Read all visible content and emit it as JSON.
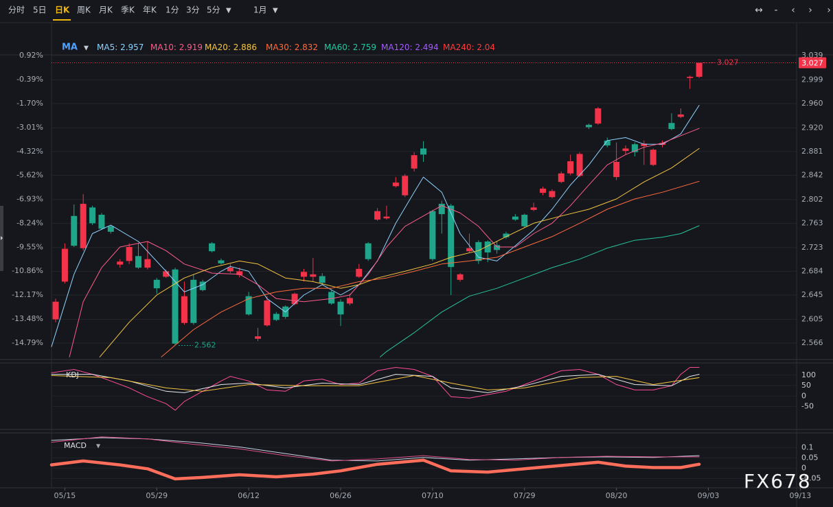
{
  "toolbar": {
    "periods": [
      "分时",
      "5日",
      "日K",
      "周K",
      "月K",
      "季K",
      "年K",
      "1分",
      "3分",
      "5分"
    ],
    "active_period": "日K",
    "period_menu": "▼",
    "range": "1月",
    "range_menu": "▼",
    "tools": [
      "↔",
      "-",
      "‹",
      "›",
      "›"
    ]
  },
  "watermark": "FX678",
  "chart_data": {
    "type": "candlestick",
    "indicator": "MA",
    "indicator_menu": "▼",
    "xlim": [
      -0.45,
      80.6
    ],
    "xticks": [
      {
        "value": 1,
        "label": "05/15"
      },
      {
        "value": 11,
        "label": "05/29"
      },
      {
        "value": 21,
        "label": "06/12"
      },
      {
        "value": 31,
        "label": "06/26"
      },
      {
        "value": 41,
        "label": "07/10"
      },
      {
        "value": 51,
        "label": "07/29"
      },
      {
        "value": 61,
        "label": "08/20"
      },
      {
        "value": 71,
        "label": "09/03"
      },
      {
        "value": 81,
        "label": "09/13"
      }
    ],
    "ylim": [
      2.54,
      3.04
    ],
    "yticks": [
      3.039,
      2.999,
      {
        "value": 2.96,
        "label": "2.960"
      },
      {
        "value": 2.92,
        "label": "2.920"
      },
      2.881,
      2.842,
      2.802,
      2.763,
      2.723,
      2.684,
      2.645,
      2.605,
      2.566
    ],
    "y2lim": [
      -15.65,
      0.96
    ],
    "y2ticks": [
      {
        "value": 0.92,
        "label": "0.92%"
      },
      {
        "value": -0.39,
        "label": "-0.39%"
      },
      {
        "value": -1.7,
        "label": "-1.70%"
      },
      {
        "value": -3.01,
        "label": "-3.01%"
      },
      {
        "value": -4.32,
        "label": "-4.32%"
      },
      {
        "value": -5.62,
        "label": "-5.62%"
      },
      {
        "value": -6.93,
        "label": "-6.93%"
      },
      {
        "value": -8.24,
        "label": "-8.24%"
      },
      {
        "value": -9.55,
        "label": "-9.55%"
      },
      {
        "value": -10.86,
        "label": "-10.86%"
      },
      {
        "value": -12.17,
        "label": "-12.17%"
      },
      {
        "value": -13.48,
        "label": "-13.48%"
      },
      {
        "value": -14.79,
        "label": "-14.79%"
      }
    ],
    "grid": true,
    "up_color": "#f2334a",
    "down_color": "#1fa58a",
    "open": [
      2.605,
      2.667,
      2.775,
      2.722,
      2.789,
      2.777,
      2.758,
      2.695,
      2.701,
      2.709,
      2.69,
      2.67,
      2.675,
      2.687,
      2.599,
      2.67,
      2.667,
      2.73,
      2.702,
      2.684,
      2.678,
      2.643,
      2.573,
      2.595,
      2.614,
      2.626,
      2.63,
      2.675,
      2.675,
      2.676,
      2.65,
      2.634,
      2.631,
      2.675,
      2.73,
      2.769,
      2.771,
      2.824,
      2.809,
      2.853,
      2.886,
      2.783,
      2.795,
      2.792,
      2.67,
      2.717,
      2.732,
      2.733,
      2.727,
      2.746,
      2.774,
      2.777,
      2.785,
      2.813,
      2.806,
      2.831,
      2.845,
      2.841,
      2.925,
      2.927,
      2.899,
      2.839,
      2.882,
      2.893,
      2.89,
      2.859,
      2.892,
      2.928,
      2.938,
      3.002,
      3.004
    ],
    "high": [
      2.639,
      2.73,
      2.794,
      2.811,
      2.792,
      2.78,
      2.76,
      2.704,
      2.73,
      2.73,
      2.733,
      2.673,
      2.687,
      2.69,
      2.667,
      2.679,
      2.67,
      2.732,
      2.705,
      2.696,
      2.69,
      2.65,
      2.591,
      2.643,
      2.617,
      2.628,
      2.649,
      2.688,
      2.706,
      2.681,
      2.653,
      2.638,
      2.647,
      2.696,
      2.732,
      2.788,
      2.792,
      2.839,
      2.844,
      2.88,
      2.898,
      2.785,
      2.8,
      2.795,
      2.681,
      2.746,
      2.735,
      2.735,
      2.733,
      2.749,
      2.778,
      2.779,
      2.797,
      2.823,
      2.819,
      2.848,
      2.876,
      2.88,
      2.927,
      2.954,
      2.904,
      2.896,
      2.891,
      2.896,
      2.899,
      2.886,
      2.899,
      2.944,
      2.952,
      3.006,
      3.027
    ],
    "low": [
      2.6,
      2.664,
      2.724,
      2.718,
      2.76,
      2.752,
      2.746,
      2.69,
      2.696,
      2.688,
      2.687,
      2.647,
      2.673,
      2.562,
      2.596,
      2.596,
      2.651,
      2.715,
      2.695,
      2.681,
      2.674,
      2.611,
      2.569,
      2.593,
      2.602,
      2.606,
      2.628,
      2.667,
      2.667,
      2.662,
      2.629,
      2.594,
      2.628,
      2.673,
      2.701,
      2.767,
      2.769,
      2.822,
      2.806,
      2.848,
      2.864,
      2.701,
      2.746,
      2.645,
      2.667,
      2.715,
      2.696,
      2.699,
      2.713,
      2.737,
      2.767,
      2.756,
      2.783,
      2.809,
      2.804,
      2.829,
      2.842,
      2.839,
      2.918,
      2.925,
      2.888,
      2.834,
      2.876,
      2.873,
      2.859,
      2.857,
      2.888,
      2.916,
      2.936,
      2.984,
      3.002
    ],
    "close": [
      2.634,
      2.721,
      2.726,
      2.795,
      2.763,
      2.754,
      2.749,
      2.7,
      2.724,
      2.69,
      2.704,
      2.656,
      2.684,
      2.565,
      2.643,
      2.599,
      2.653,
      2.717,
      2.697,
      2.69,
      2.684,
      2.613,
      2.577,
      2.636,
      2.604,
      2.609,
      2.647,
      2.683,
      2.679,
      2.665,
      2.631,
      2.613,
      2.64,
      2.688,
      2.704,
      2.783,
      2.774,
      2.83,
      2.841,
      2.875,
      2.876,
      2.704,
      2.778,
      2.691,
      2.679,
      2.722,
      2.701,
      2.715,
      2.719,
      2.74,
      2.769,
      2.758,
      2.789,
      2.82,
      2.816,
      2.845,
      2.865,
      2.877,
      2.921,
      2.952,
      2.891,
      2.864,
      2.886,
      2.88,
      2.894,
      2.884,
      2.895,
      2.918,
      2.942,
      3.004,
      3.027
    ],
    "last_price": 3.027,
    "high_mark": 3.027,
    "low_mark": 2.562,
    "moving_averages": [
      {
        "name": "MA5",
        "value": 2.957,
        "color": "#8fd3ff",
        "x": [
          -0.45,
          2,
          4,
          6,
          9,
          12,
          14,
          16,
          18,
          19,
          21,
          23,
          25,
          27,
          29,
          31,
          33,
          35,
          37,
          39,
          40,
          42,
          44,
          46,
          48,
          50,
          52,
          54,
          56,
          58,
          60,
          62,
          64,
          66,
          68,
          70
        ],
        "values": [
          2.56,
          2.679,
          2.746,
          2.76,
          2.733,
          2.684,
          2.65,
          2.662,
          2.684,
          2.692,
          2.684,
          2.639,
          2.617,
          2.645,
          2.662,
          2.645,
          2.662,
          2.701,
          2.763,
          2.814,
          2.839,
          2.814,
          2.746,
          2.707,
          2.701,
          2.726,
          2.752,
          2.786,
          2.826,
          2.859,
          2.899,
          2.904,
          2.893,
          2.893,
          2.91,
          2.957
        ]
      },
      {
        "name": "MA10",
        "value": 2.919,
        "color": "#ff5c8a",
        "x": [
          1.5,
          3,
          5,
          7,
          10,
          12,
          14,
          17,
          20,
          22,
          24,
          27,
          30,
          32,
          34,
          36,
          38,
          40,
          42,
          44,
          46,
          48,
          50,
          52,
          54,
          56,
          58,
          60,
          62,
          64,
          66,
          68,
          70
        ],
        "values": [
          2.543,
          2.634,
          2.69,
          2.724,
          2.733,
          2.718,
          2.696,
          2.681,
          2.679,
          2.662,
          2.639,
          2.634,
          2.639,
          2.645,
          2.679,
          2.724,
          2.758,
          2.775,
          2.792,
          2.78,
          2.758,
          2.724,
          2.724,
          2.746,
          2.763,
          2.792,
          2.826,
          2.859,
          2.876,
          2.888,
          2.895,
          2.907,
          2.919
        ]
      },
      {
        "name": "MA20",
        "value": 2.886,
        "color": "#f5c542",
        "x": [
          4.8,
          8,
          11,
          14,
          17,
          20,
          22,
          25,
          28,
          31,
          33,
          35,
          38,
          41,
          43,
          46,
          49,
          52,
          55,
          58,
          61,
          64,
          67,
          70
        ],
        "values": [
          2.543,
          2.6,
          2.645,
          2.673,
          2.69,
          2.701,
          2.696,
          2.673,
          2.667,
          2.656,
          2.662,
          2.673,
          2.684,
          2.696,
          2.707,
          2.718,
          2.741,
          2.763,
          2.775,
          2.786,
          2.803,
          2.831,
          2.854,
          2.886
        ]
      },
      {
        "name": "MA30",
        "value": 2.832,
        "color": "#ff6b3d",
        "x": [
          11.5,
          15,
          18,
          21,
          24,
          27,
          30,
          33,
          36,
          39,
          42,
          45,
          48,
          51,
          54,
          57,
          60,
          63,
          66,
          70
        ],
        "values": [
          2.543,
          2.588,
          2.617,
          2.639,
          2.65,
          2.656,
          2.656,
          2.667,
          2.673,
          2.684,
          2.696,
          2.701,
          2.707,
          2.724,
          2.741,
          2.763,
          2.786,
          2.803,
          2.814,
          2.832
        ]
      },
      {
        "name": "MA60",
        "value": 2.759,
        "color": "#26c6a0",
        "x": [
          35.3,
          36,
          39,
          42,
          45,
          48,
          51,
          54,
          57,
          60,
          63,
          66,
          68,
          70
        ],
        "values": [
          2.543,
          2.552,
          2.583,
          2.617,
          2.643,
          2.656,
          2.673,
          2.69,
          2.704,
          2.722,
          2.735,
          2.74,
          2.746,
          2.759
        ]
      },
      {
        "name": "MA120",
        "value": 2.494,
        "color": "#a45cff"
      },
      {
        "name": "MA240",
        "value": 2.04,
        "color": "#ff3b3b"
      }
    ],
    "kdj": {
      "title": "KDJ",
      "ylim": [
        -140,
        155
      ],
      "yticks": [
        100,
        50,
        0,
        -50
      ],
      "series": [
        {
          "color": "#ff4d9a",
          "x": [
            -0.45,
            2,
            4,
            6,
            8,
            10,
            12,
            13,
            14,
            16,
            18,
            19,
            21,
            23,
            25,
            27,
            29,
            31,
            33,
            35,
            37,
            39,
            41,
            43,
            45,
            47,
            49,
            51,
            53,
            55,
            57,
            59,
            61,
            63,
            65,
            67,
            68,
            69,
            70
          ],
          "values": [
            111,
            127,
            104,
            72,
            39,
            -3,
            -36,
            -68,
            -26,
            23,
            72,
            94,
            72,
            29,
            23,
            72,
            81,
            55,
            62,
            121,
            137,
            127,
            94,
            -3,
            -10,
            7,
            23,
            55,
            88,
            121,
            127,
            104,
            55,
            29,
            29,
            49,
            104,
            137,
            137
          ]
        },
        {
          "color": "#e8eaed",
          "x": [
            -0.45,
            4,
            8,
            12,
            14,
            18,
            21,
            25,
            29,
            33,
            37,
            41,
            43,
            47,
            51,
            55,
            59,
            63,
            67,
            69,
            70
          ],
          "values": [
            104,
            104,
            72,
            23,
            16,
            55,
            62,
            39,
            62,
            55,
            104,
            94,
            39,
            16,
            49,
            94,
            104,
            55,
            49,
            94,
            104
          ]
        },
        {
          "color": "#f5c542",
          "x": [
            -0.45,
            6,
            12,
            16,
            21,
            27,
            33,
            39,
            43,
            47,
            51,
            57,
            61,
            65,
            70
          ],
          "values": [
            98,
            88,
            39,
            23,
            55,
            49,
            49,
            98,
            62,
            29,
            39,
            88,
            94,
            55,
            88
          ]
        }
      ]
    },
    "macd": {
      "title": "MACD",
      "menu": "▼",
      "ylim": [
        -0.092,
        0.168
      ],
      "yticks": [
        0.1,
        0.05,
        0,
        -0.05
      ],
      "series": [
        {
          "color": "#ff6e5a",
          "kind": "histogram",
          "x": [
            -0.45,
            3,
            7,
            10,
            13,
            16,
            20,
            24,
            28,
            31,
            35,
            40,
            43,
            47,
            51,
            55,
            59,
            62,
            65,
            68,
            70
          ],
          "values": [
            0.016,
            0.035,
            0.016,
            -0.003,
            -0.052,
            -0.045,
            -0.032,
            -0.042,
            -0.029,
            -0.013,
            0.019,
            0.039,
            -0.013,
            -0.019,
            -0.003,
            0.013,
            0.029,
            0.01,
            0.003,
            0.003,
            0.019
          ]
        },
        {
          "color": "#c9d4e6",
          "kind": "line",
          "x": [
            -0.45,
            5,
            10,
            15,
            20,
            25,
            30,
            35,
            40,
            45,
            50,
            55,
            60,
            65,
            70
          ],
          "values": [
            0.135,
            0.148,
            0.142,
            0.126,
            0.103,
            0.071,
            0.039,
            0.035,
            0.052,
            0.039,
            0.045,
            0.052,
            0.055,
            0.052,
            0.061
          ]
        },
        {
          "color": "#e0508a",
          "kind": "line",
          "x": [
            -0.45,
            5,
            10,
            15,
            20,
            25,
            30,
            35,
            40,
            45,
            50,
            55,
            60,
            65,
            70
          ],
          "values": [
            0.126,
            0.152,
            0.142,
            0.116,
            0.094,
            0.061,
            0.035,
            0.045,
            0.061,
            0.042,
            0.039,
            0.052,
            0.058,
            0.055,
            0.055
          ]
        }
      ]
    }
  }
}
